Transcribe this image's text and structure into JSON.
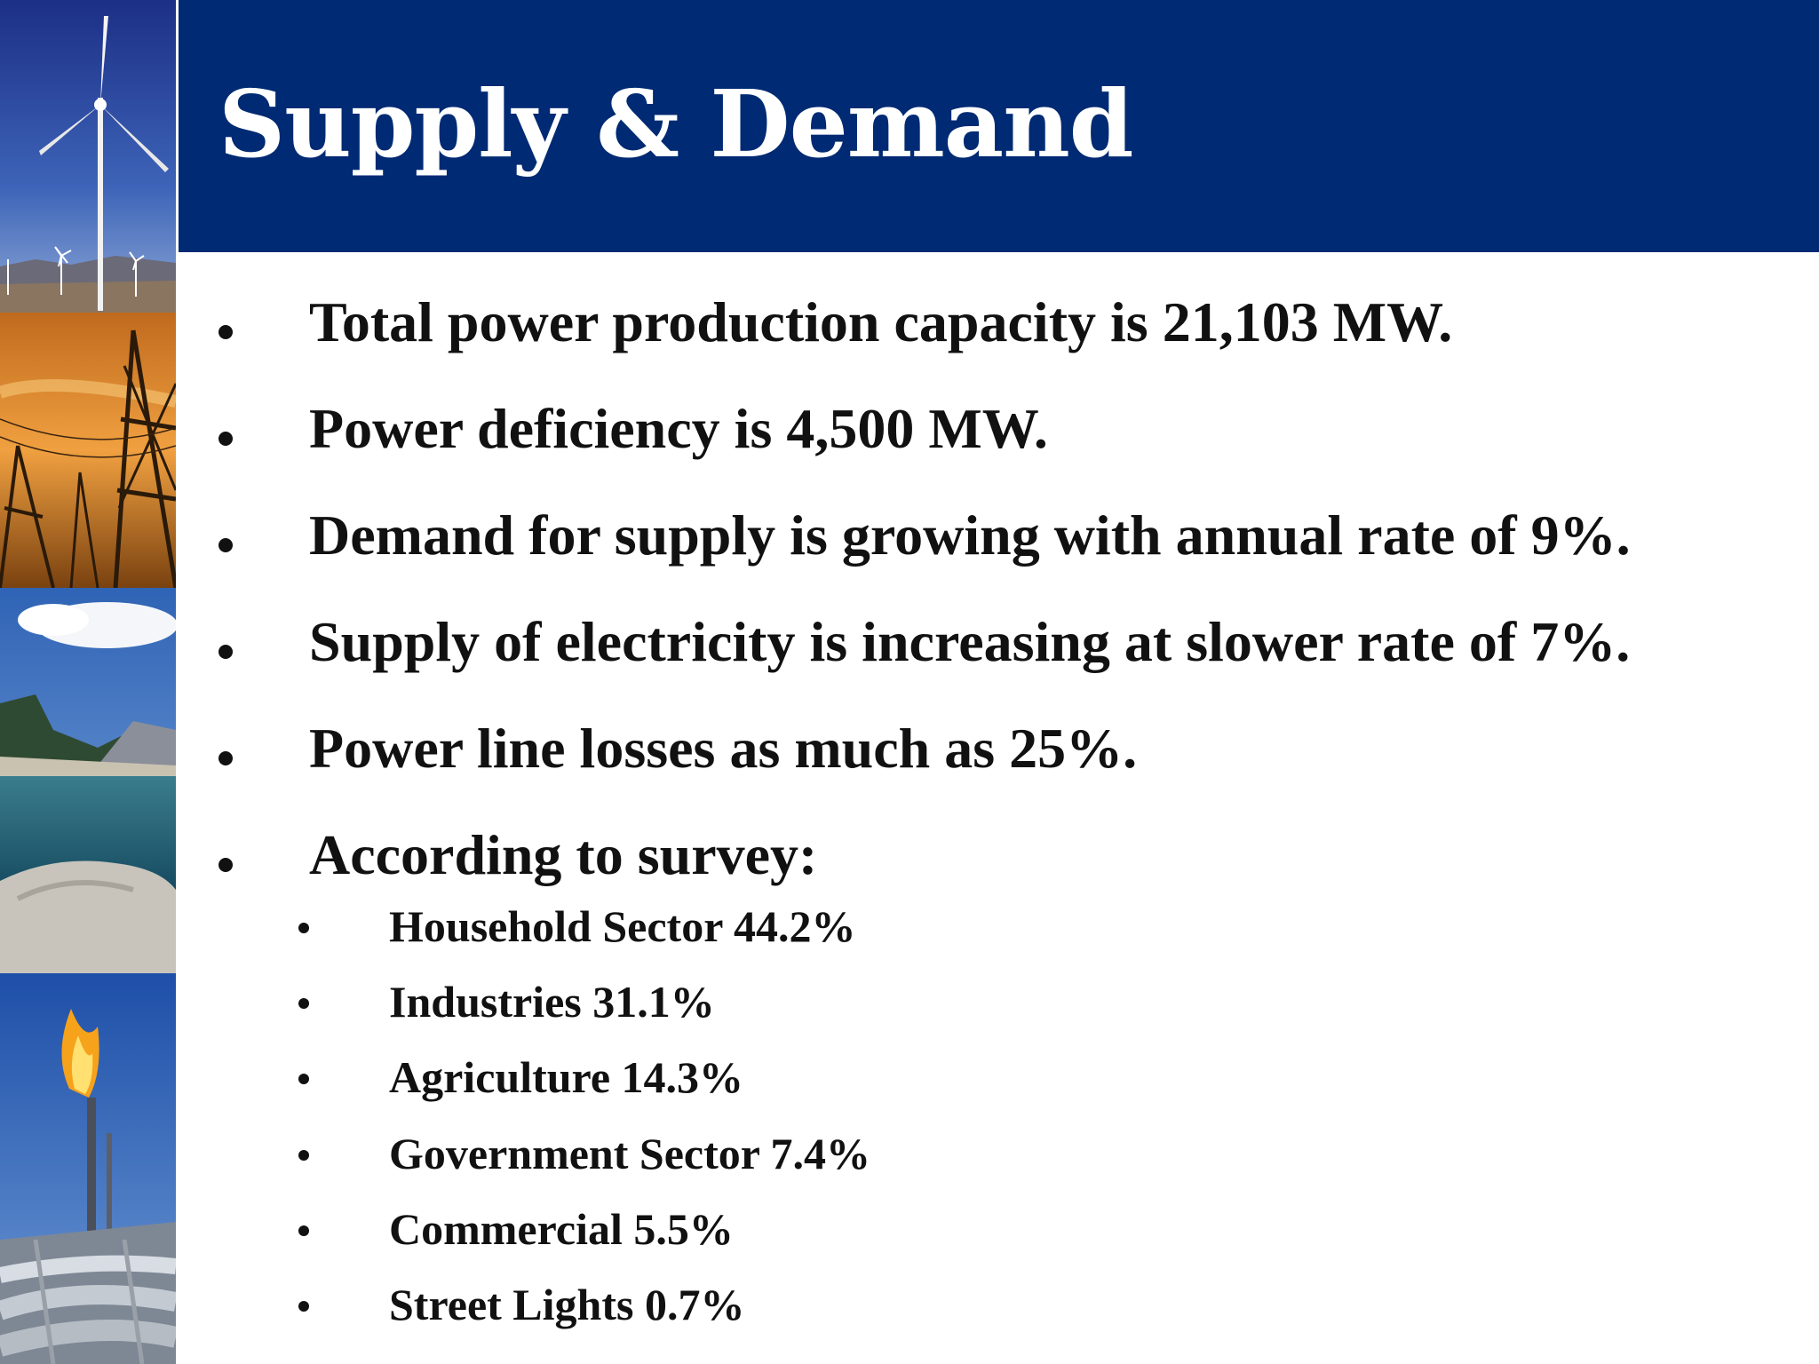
{
  "slide": {
    "title": "Supply & Demand",
    "header_color": "#002a73",
    "photos": [
      "wind-turbine-photo",
      "power-pylon-sunset-photo",
      "mountain-lake-photo",
      "gas-flare-pipeline-photo"
    ],
    "bullets": [
      {
        "text": "Total power production capacity is 21,103 MW."
      },
      {
        "text": "Power deficiency is 4,500 MW."
      },
      {
        "text": "Demand for supply is growing with annual rate of 9%."
      },
      {
        "text": "Supply of electricity is increasing at slower rate of 7%."
      },
      {
        "text": "Power line losses as much as 25%."
      },
      {
        "text": "According to survey:"
      }
    ],
    "sub_bullets": [
      {
        "text": "Household Sector 44.2%"
      },
      {
        "text": "Industries 31.1%"
      },
      {
        "text": "Agriculture 14.3%"
      },
      {
        "text": "Government Sector 7.4%"
      },
      {
        "text": "Commercial 5.5%"
      },
      {
        "text": "Street Lights 0.7%"
      }
    ]
  }
}
